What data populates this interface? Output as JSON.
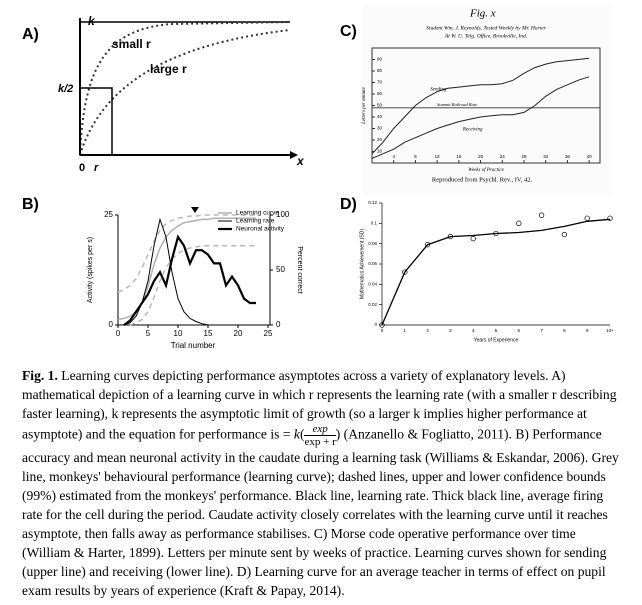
{
  "panel_a": {
    "label": "A)",
    "k": "k",
    "half": "k/2",
    "small": "small r",
    "large": "large r",
    "origin": "0",
    "r": "r",
    "x": "x"
  },
  "chart_data": [
    {
      "type": "line",
      "panel": "B)",
      "xlabel": "Trial number",
      "ylabel": "Activity (spikes per s)",
      "y2label": "Percent correct",
      "x": [
        0,
        1,
        2,
        3,
        4,
        5,
        6,
        7,
        8,
        9,
        10,
        11,
        12,
        13,
        14,
        15,
        16,
        17,
        18,
        19,
        20,
        21,
        22,
        23,
        24
      ],
      "xlim": [
        0,
        25
      ],
      "xticks": [
        0,
        5,
        10,
        15,
        20,
        25
      ],
      "ylim": [
        0,
        25
      ],
      "yticks": [
        0,
        25
      ],
      "y2lim": [
        0,
        100
      ],
      "y2ticks": [
        0,
        50,
        100
      ],
      "legend": "top-right",
      "series": [
        {
          "name": "Learning curve",
          "color": "#b0b0b0",
          "axis": "y2",
          "width": 1.5,
          "values": [
            5,
            6,
            8,
            12,
            20,
            35,
            55,
            70,
            80,
            86,
            90,
            93,
            94,
            95,
            96,
            96,
            97,
            97,
            97,
            97,
            97,
            97,
            97,
            97,
            null
          ]
        },
        {
          "color": "#b8b8b8",
          "axis": "y2",
          "dashed": true,
          "width": 1.5,
          "values": [
            30,
            32,
            36,
            42,
            52,
            64,
            76,
            86,
            92,
            95,
            97,
            98,
            99,
            99,
            100,
            100,
            100,
            100,
            100,
            100,
            100,
            100,
            100,
            100,
            null
          ]
        },
        {
          "color": "#b8b8b8",
          "axis": "y2",
          "dashed": true,
          "width": 1.5,
          "values": [
            null,
            null,
            0,
            2,
            5,
            12,
            25,
            40,
            52,
            60,
            65,
            68,
            70,
            71,
            72,
            72,
            72,
            72,
            72,
            72,
            72,
            72,
            72,
            72,
            null
          ]
        },
        {
          "name": "Learning rate",
          "color": "#000000",
          "width": 1,
          "values": [
            0,
            0,
            0.5,
            2,
            5,
            10,
            18,
            24,
            20,
            12,
            6,
            3,
            1.5,
            0.8,
            0.3,
            0,
            null,
            null,
            null,
            null,
            null,
            null,
            null,
            null,
            null
          ]
        },
        {
          "name": "Neuronal activity",
          "color": "#000000",
          "width": 2.2,
          "values": [
            null,
            0,
            1,
            3,
            5,
            7,
            10,
            12,
            9,
            15,
            20,
            18,
            14,
            17,
            17,
            16,
            14,
            14,
            9,
            11,
            9,
            6,
            5,
            5,
            null
          ]
        }
      ]
    },
    {
      "type": "line",
      "panel": "C)",
      "figure": "Fig. x",
      "heading": [
        "Student Wm. J. Reynolds, Tested Weekly by Mr. Harter",
        "At W. U. Telg. Office, Brookville, Ind."
      ],
      "xlabel": "Weeks of Practice",
      "ylabel": "Letters per minute",
      "source": "Reproduced from Psychl. Rev., IV, 42.",
      "x": [
        0,
        2,
        4,
        6,
        8,
        10,
        12,
        14,
        16,
        18,
        20,
        22,
        24,
        26,
        28,
        30,
        32,
        34,
        36,
        38,
        40
      ],
      "xlim": [
        0,
        42
      ],
      "xticks": [
        4,
        8,
        12,
        16,
        20,
        24,
        28,
        32,
        36,
        40
      ],
      "ylim": [
        0,
        100
      ],
      "yticks": [
        10,
        20,
        30,
        40,
        50,
        60,
        70,
        80,
        90
      ],
      "summit": {
        "label": "Summit Railroad Rate",
        "value": 48
      },
      "series": [
        {
          "name": "Sending",
          "color": "#222222",
          "values": [
            8,
            18,
            30,
            40,
            50,
            57,
            62,
            65,
            66,
            67,
            68,
            68,
            69,
            72,
            78,
            83,
            86,
            88,
            89,
            90,
            91
          ]
        },
        {
          "name": "Receiving",
          "color": "#222222",
          "values": [
            4,
            8,
            12,
            18,
            22,
            26,
            30,
            33,
            36,
            38,
            40,
            41,
            42,
            42,
            44,
            50,
            58,
            64,
            68,
            72,
            75
          ]
        }
      ]
    },
    {
      "type": "line",
      "panel": "D)",
      "xlabel": "Years of Experience",
      "ylabel": "Mathematics Achievement (SD)",
      "categories": [
        "0",
        "1",
        "2",
        "3",
        "4",
        "5",
        "6",
        "7",
        "8",
        "9",
        "10+"
      ],
      "ylim": [
        0,
        0.12
      ],
      "yticks": [
        0,
        0.02,
        0.04,
        0.06,
        0.08,
        0.1,
        0.12
      ],
      "series": [
        {
          "color": "#000000",
          "marker": "circle",
          "values": [
            0,
            0.052,
            0.079,
            0.087,
            0.085,
            0.09,
            0.1,
            0.108,
            0.089,
            0.105,
            0.105
          ]
        },
        {
          "color": "#000000",
          "marker": "none",
          "values": [
            0,
            0.052,
            0.079,
            0.087,
            0.088,
            0.09,
            0.091,
            0.093,
            0.097,
            0.102,
            0.104
          ]
        }
      ]
    }
  ],
  "caption": {
    "lead": "Fig. 1.",
    "before": " Learning curves depicting performance asymptotes across a variety of explanatory levels. A) mathematical depiction of a learning curve in which r represents the learning rate (with a smaller r describing faster learning), k represents the asymptotic limit of growth  (so a larger k implies higher performance at asymptote) and the equation for performance is = ",
    "k": "k",
    "numerator": "exp",
    "denominator": "exp + r",
    "after": " (Anzanello & Fogliatto, 2011). B) Performance accuracy and mean neuronal activity in the caudate during a learning task (Williams & Eskandar, 2006). Grey line, monkeys' behavioural performance (learning curve); dashed lines, upper and lower confidence bounds (99%) estimated from the monkeys' performance. Black line, learning rate. Thick black line, average firing rate for the cell during the period. Caudate activity closely correlates with the learning curve until it reaches asymptote, then falls away as performance stabilises. C) Morse code operative performance over time (William & Harter, 1899). Letters per minute sent by weeks of practice. Learning curves shown for sending (upper line) and receiving (lower line). D) Learning curve for an average teacher in terms of effect on pupil exam results by years of experience (Kraft & Papay, 2014)."
  }
}
